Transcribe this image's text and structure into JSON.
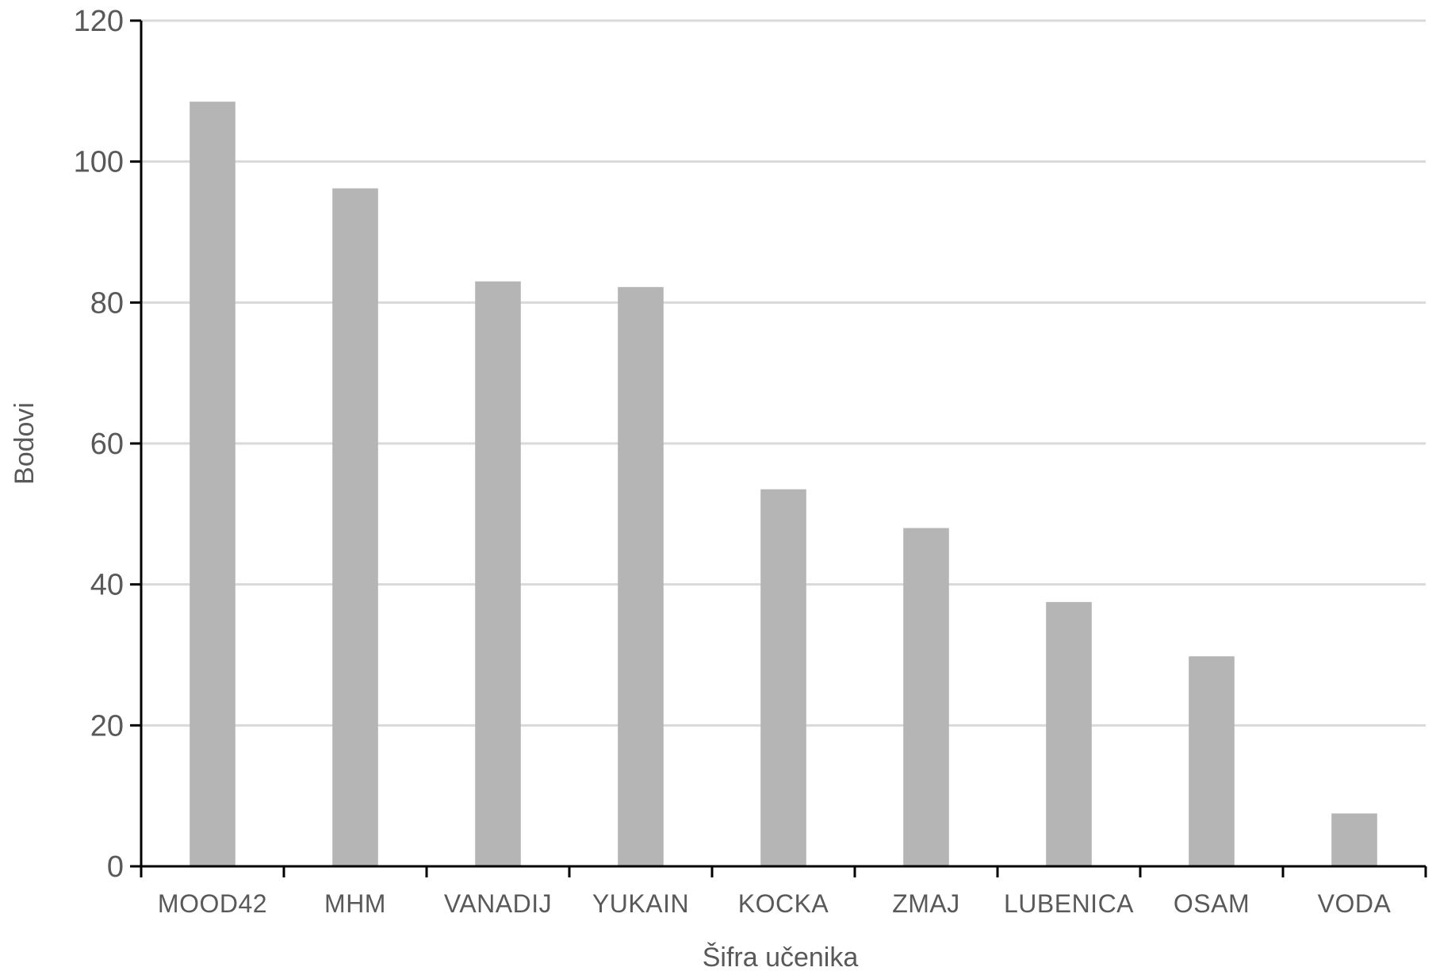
{
  "chart_data": {
    "type": "bar",
    "title": "",
    "xlabel": "Šifra učenika",
    "ylabel": "Bodovi",
    "categories": [
      "MOOD42",
      "MHM",
      "VANADIJ",
      "YUKAIN",
      "KOCKA",
      "ZMAJ",
      "LUBENICA",
      "OSAM",
      "VODA"
    ],
    "values": [
      108.5,
      96.2,
      83.0,
      82.2,
      53.5,
      48.0,
      37.5,
      29.8,
      7.5
    ],
    "ylim": [
      0,
      120
    ],
    "yticks": [
      0,
      20,
      40,
      60,
      80,
      100,
      120
    ],
    "grid": true,
    "legend": "none",
    "bar_color": "#b5b5b5",
    "grid_color": "#d9d9d9",
    "axis_color": "#000000",
    "text_color": "#595959"
  }
}
